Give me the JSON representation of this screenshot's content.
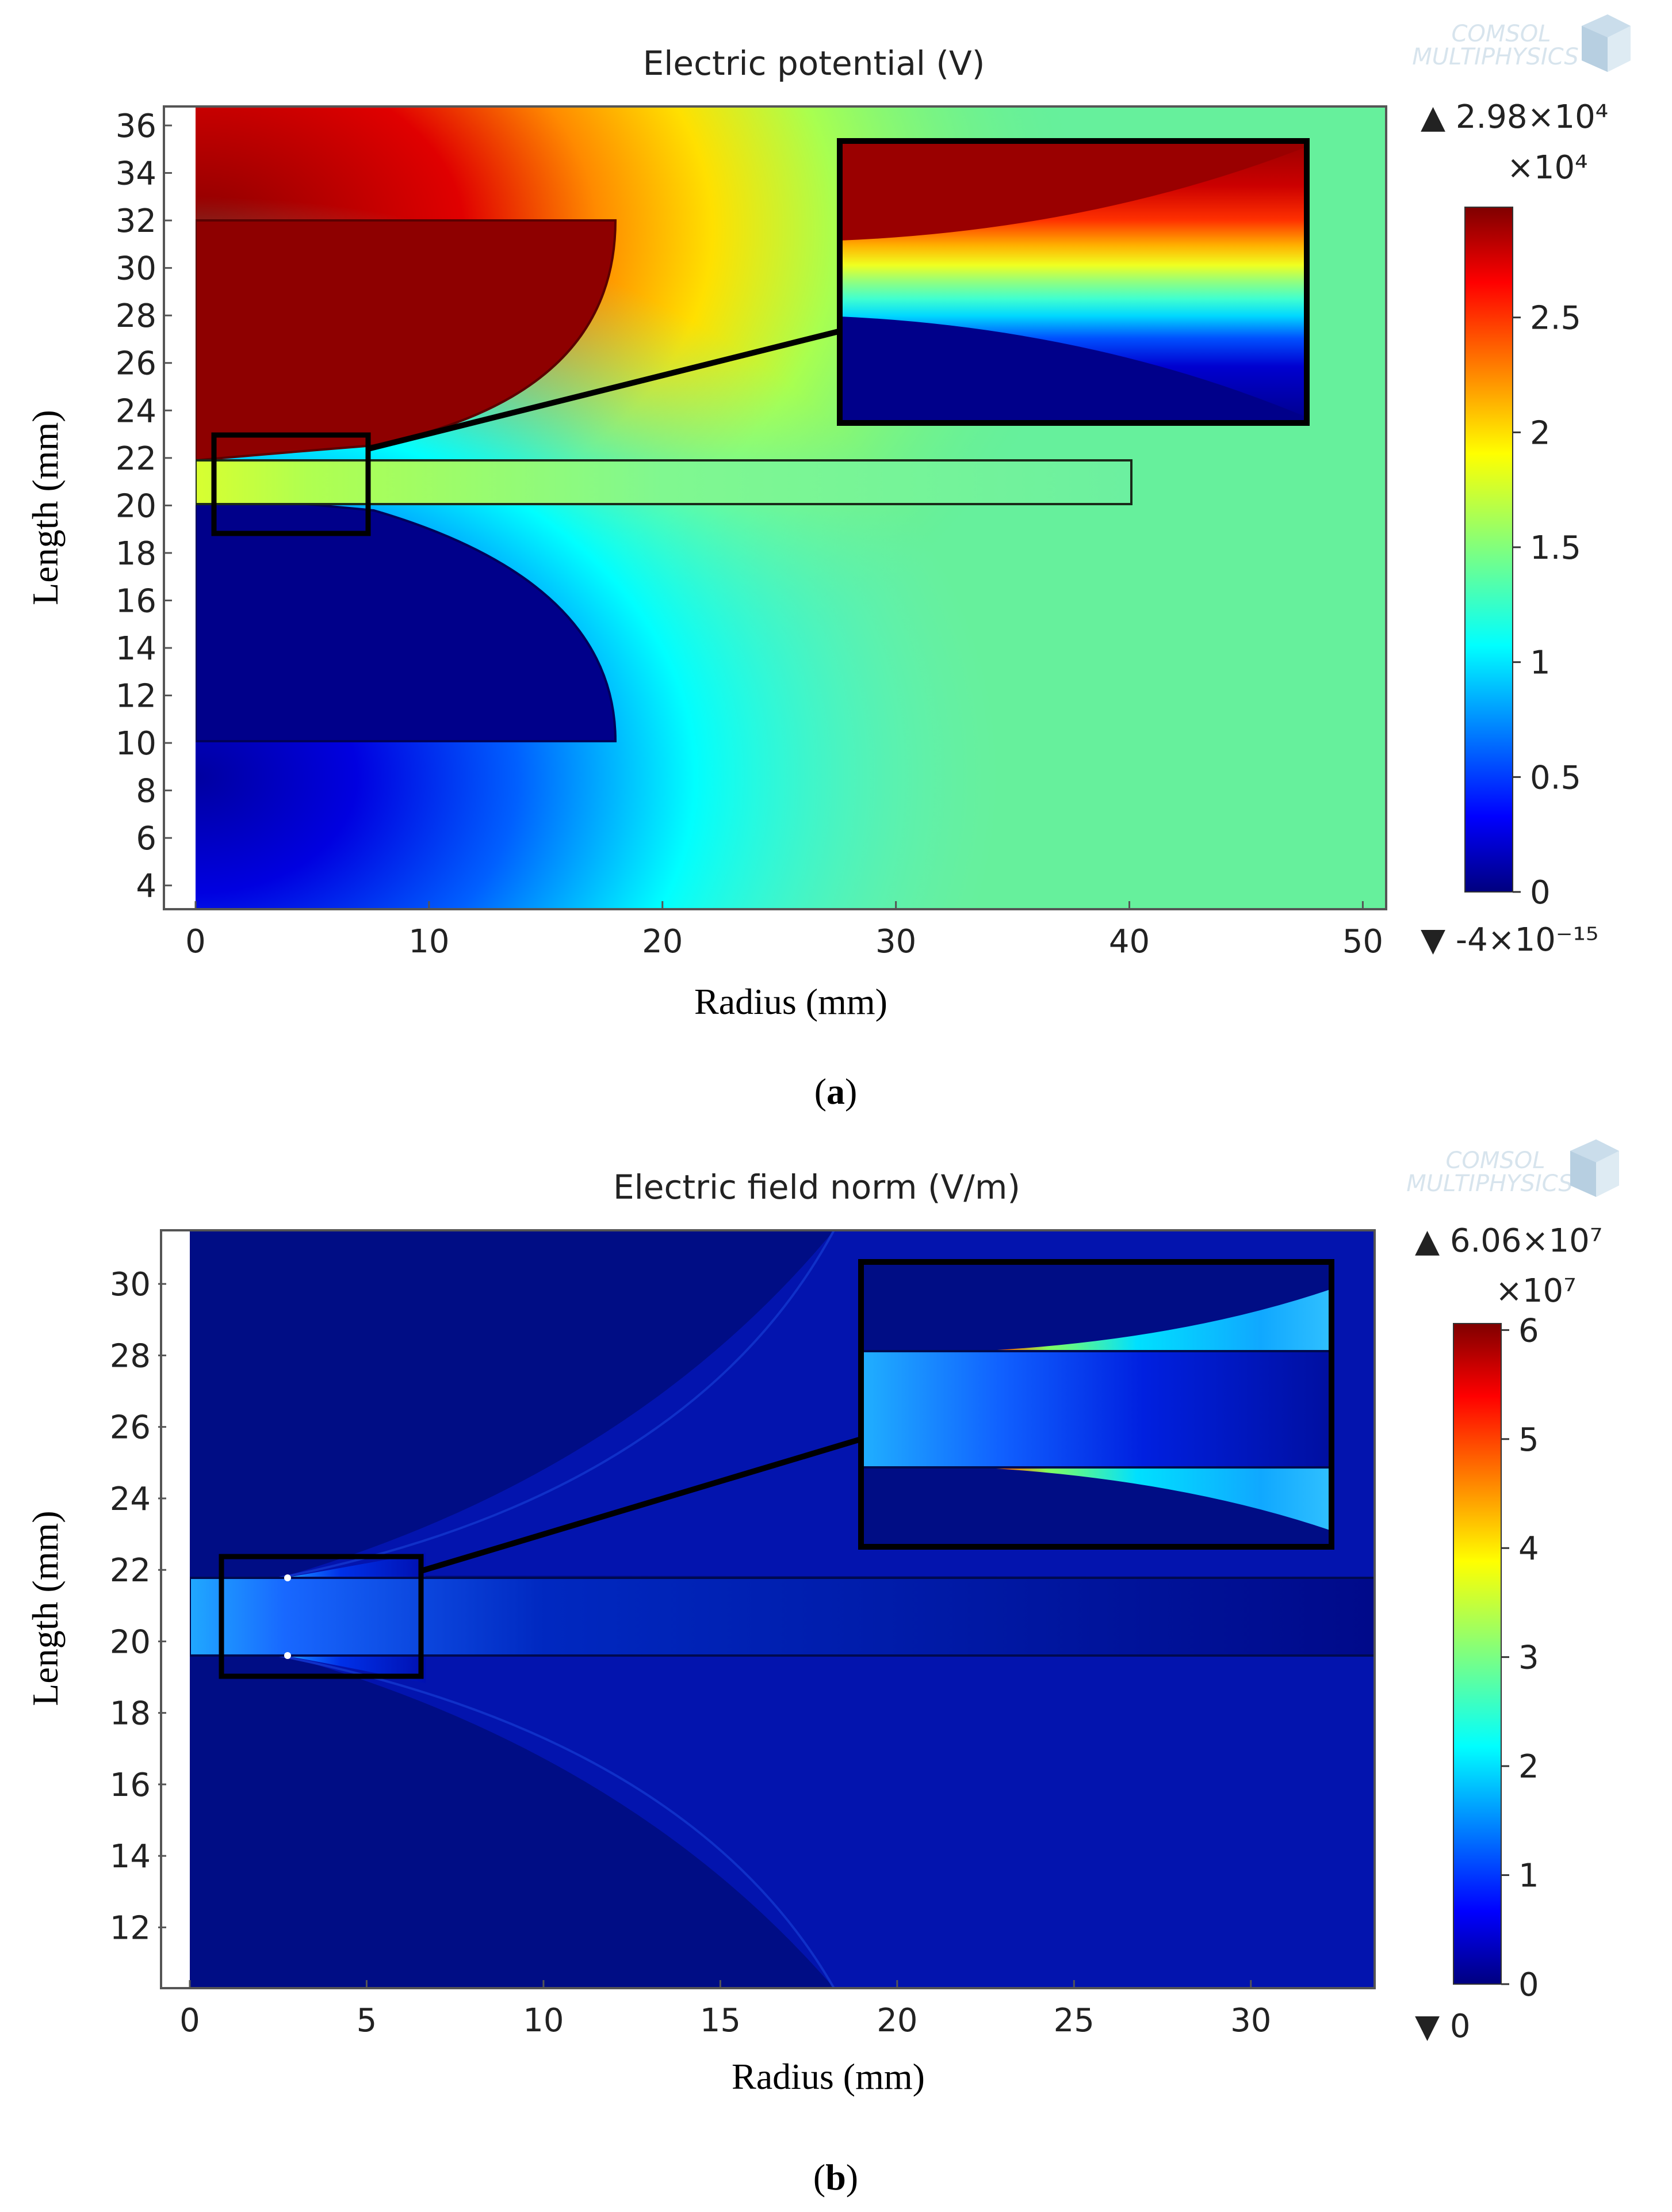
{
  "watermark": {
    "line1": "COMSOL",
    "line2": "MULTIPHYSICS",
    "icon": "comsol-cube-icon"
  },
  "colors": {
    "frame": "#000000",
    "background": "#ffffff"
  },
  "panels": [
    {
      "id": "a",
      "caption_label": "a",
      "caption_open": "(",
      "caption_close": ")"
    },
    {
      "id": "b",
      "caption_label": "b",
      "caption_open": "(",
      "caption_close": ")"
    }
  ],
  "chart_data": [
    {
      "type": "heatmap",
      "title": "Electric potential (V)",
      "xlabel": "Radius (mm)",
      "ylabel": "Length (mm)",
      "xlim": [
        0,
        51
      ],
      "ylim": [
        3,
        36.8
      ],
      "xticks": [
        0,
        10,
        20,
        30,
        40,
        50
      ],
      "yticks": [
        4,
        6,
        8,
        10,
        12,
        14,
        16,
        18,
        20,
        22,
        24,
        26,
        28,
        30,
        32,
        34,
        36
      ],
      "colorbar": {
        "colormap": "jet",
        "range": [
          0,
          2.98
        ],
        "multiplier": "×10⁴",
        "max_label": "▲ 2.98×10⁴",
        "min_label": "▼ -4×10⁻¹⁵",
        "ticks": [
          0,
          0.5,
          1,
          1.5,
          2,
          2.5
        ],
        "tick_labels": [
          "0",
          "0.5",
          "1",
          "1.5",
          "2",
          "2.5"
        ]
      },
      "electrodes": [
        {
          "name": "high-voltage electrode",
          "potential": 29800,
          "r_max": 18,
          "z_range": [
            22,
            32
          ]
        },
        {
          "name": "ground electrode",
          "potential": 0,
          "r_max": 18,
          "z_range": [
            10,
            20
          ]
        }
      ],
      "dielectric_slab": {
        "r_range": [
          0,
          40
        ],
        "z_range": [
          20,
          22
        ]
      },
      "zoom_box": {
        "r_range": [
          1,
          7.3
        ],
        "z_range": [
          19,
          23
        ]
      }
    },
    {
      "type": "heatmap",
      "title": "Electric field norm (V/m)",
      "xlabel": "Radius (mm)",
      "ylabel": "Length (mm)",
      "xlim": [
        0,
        33.5
      ],
      "ylim": [
        10.3,
        31.5
      ],
      "xticks": [
        0,
        5,
        10,
        15,
        20,
        25,
        30
      ],
      "yticks": [
        12,
        14,
        16,
        18,
        20,
        22,
        24,
        26,
        28,
        30
      ],
      "colorbar": {
        "colormap": "jet",
        "range": [
          0,
          6.06
        ],
        "multiplier": "×10⁷",
        "max_label": "▲ 6.06×10⁷",
        "min_label": "▼ 0",
        "ticks": [
          0,
          1,
          2,
          3,
          4,
          5,
          6
        ],
        "tick_labels": [
          "0",
          "1",
          "2",
          "3",
          "4",
          "5",
          "6"
        ]
      },
      "dielectric_slab": {
        "r_range": [
          0,
          33.5
        ],
        "z_range": [
          20,
          22
        ]
      },
      "zoom_box": {
        "r_range": [
          0.8,
          6.5
        ],
        "z_range": [
          19,
          22.6
        ]
      }
    }
  ]
}
